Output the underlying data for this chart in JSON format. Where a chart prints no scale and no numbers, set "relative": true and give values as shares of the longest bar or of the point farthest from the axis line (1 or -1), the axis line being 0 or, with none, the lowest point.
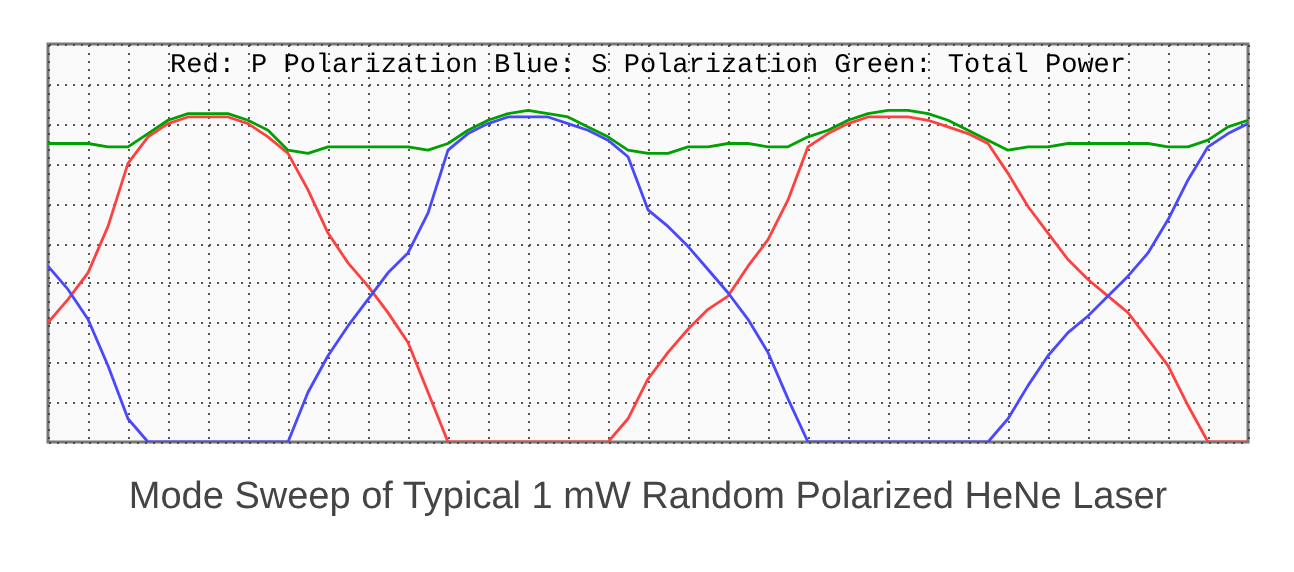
{
  "chart_data": {
    "type": "line",
    "title": "Mode Sweep of Typical 1 mW Random Polarized HeNe Laser",
    "annotations": [
      "Red: P Polarization  Blue: S Polarization  Green: Total Power"
    ],
    "relative": true,
    "grid": true,
    "categories": [
      null,
      null,
      null,
      null,
      null,
      null,
      null,
      null,
      null,
      null,
      null,
      null,
      null,
      null,
      null,
      null,
      null,
      null,
      null,
      null,
      null,
      null,
      null,
      null,
      null,
      null,
      null,
      null,
      null,
      null,
      null,
      null,
      null,
      null,
      null,
      null,
      null,
      null,
      null,
      null,
      null,
      null,
      null,
      null,
      null,
      null,
      null,
      null,
      null,
      null,
      null,
      null,
      null,
      null,
      null,
      null,
      null,
      null,
      null,
      null,
      null
    ],
    "series": [
      {
        "color": "#ff4040",
        "values": [
          0.36,
          0.43,
          0.51,
          0.65,
          0.84,
          0.92,
          0.96,
          0.98,
          0.98,
          0.98,
          0.96,
          0.92,
          0.87,
          0.76,
          0.63,
          0.54,
          0.47,
          0.39,
          0.3,
          0.15,
          0,
          0,
          0,
          0,
          0,
          0,
          0,
          0,
          0,
          0.07,
          0.19,
          0.27,
          0.34,
          0.4,
          0.44,
          0.53,
          0.61,
          0.73,
          0.89,
          0.93,
          0.96,
          0.98,
          0.98,
          0.98,
          0.97,
          0.95,
          0.93,
          0.9,
          0.81,
          0.71,
          0.63,
          0.55,
          0.49,
          0.44,
          0.39,
          0.31,
          0.23,
          0.11,
          0,
          0,
          0
        ]
      },
      {
        "color": "#4848ff",
        "values": [
          0.53,
          0.46,
          0.37,
          0.23,
          0.07,
          0,
          0,
          0,
          0,
          0,
          0,
          0,
          0,
          0.15,
          0.26,
          0.35,
          0.43,
          0.51,
          0.57,
          0.69,
          0.88,
          0.93,
          0.96,
          0.98,
          0.98,
          0.98,
          0.96,
          0.94,
          0.91,
          0.86,
          0.7,
          0.65,
          0.59,
          0.52,
          0.45,
          0.37,
          0.27,
          0.13,
          0,
          0,
          0,
          0,
          0,
          0,
          0,
          0,
          0,
          0,
          0.07,
          0.17,
          0.26,
          0.33,
          0.38,
          0.44,
          0.5,
          0.57,
          0.67,
          0.79,
          0.89,
          0.93,
          0.96
        ]
      },
      {
        "color": "#00a000",
        "values": [
          0.9,
          0.9,
          0.9,
          0.89,
          0.89,
          0.93,
          0.97,
          0.99,
          0.99,
          0.99,
          0.97,
          0.94,
          0.88,
          0.87,
          0.89,
          0.89,
          0.89,
          0.89,
          0.89,
          0.88,
          0.9,
          0.94,
          0.97,
          0.99,
          1,
          0.99,
          0.98,
          0.95,
          0.92,
          0.88,
          0.87,
          0.87,
          0.89,
          0.89,
          0.9,
          0.9,
          0.89,
          0.89,
          0.92,
          0.94,
          0.97,
          0.99,
          1,
          1,
          0.99,
          0.97,
          0.94,
          0.91,
          0.88,
          0.89,
          0.89,
          0.9,
          0.9,
          0.9,
          0.9,
          0.9,
          0.89,
          0.89,
          0.91,
          0.95,
          0.97
        ]
      }
    ]
  }
}
